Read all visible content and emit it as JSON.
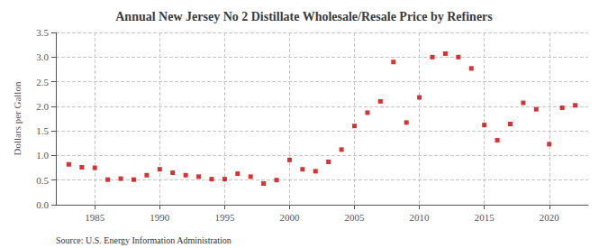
{
  "chart_data": {
    "type": "scatter",
    "title": "Annual New Jersey No 2 Distillate Wholesale/Resale Price by Refiners",
    "ylabel": "Dollars per Gallon",
    "source": "Source: U.S. Energy Information Administration",
    "color": "#cc0000",
    "marker": "square",
    "grid": true,
    "x": [
      1983,
      1984,
      1985,
      1986,
      1987,
      1988,
      1989,
      1990,
      1991,
      1992,
      1993,
      1994,
      1995,
      1996,
      1997,
      1998,
      1999,
      2000,
      2001,
      2002,
      2003,
      2004,
      2005,
      2006,
      2007,
      2008,
      2009,
      2010,
      2011,
      2012,
      2013,
      2014,
      2015,
      2016,
      2017,
      2018,
      2019,
      2020,
      2021,
      2022
    ],
    "values": [
      0.82,
      0.76,
      0.75,
      0.51,
      0.53,
      0.51,
      0.6,
      0.72,
      0.65,
      0.6,
      0.57,
      0.52,
      0.52,
      0.63,
      0.57,
      0.43,
      0.5,
      0.91,
      0.72,
      0.68,
      0.87,
      1.12,
      1.6,
      1.87,
      2.1,
      2.9,
      1.67,
      2.18,
      3.0,
      3.07,
      3.0,
      2.77,
      1.62,
      1.31,
      1.64,
      2.07,
      1.94,
      1.23,
      1.97,
      2.02
    ],
    "xlim": [
      1982,
      2023
    ],
    "xticks": [
      1985,
      1990,
      1995,
      2000,
      2005,
      2010,
      2015,
      2020
    ],
    "ylim": [
      0.0,
      3.5
    ],
    "yticks": [
      {
        "value": 0.0,
        "label": "0.0"
      },
      0.5,
      {
        "value": 1.0,
        "label": "1.0"
      },
      1.5,
      {
        "value": 2.0,
        "label": "2.0"
      },
      2.5,
      {
        "value": 3.0,
        "label": "3.0"
      },
      3.5
    ]
  }
}
